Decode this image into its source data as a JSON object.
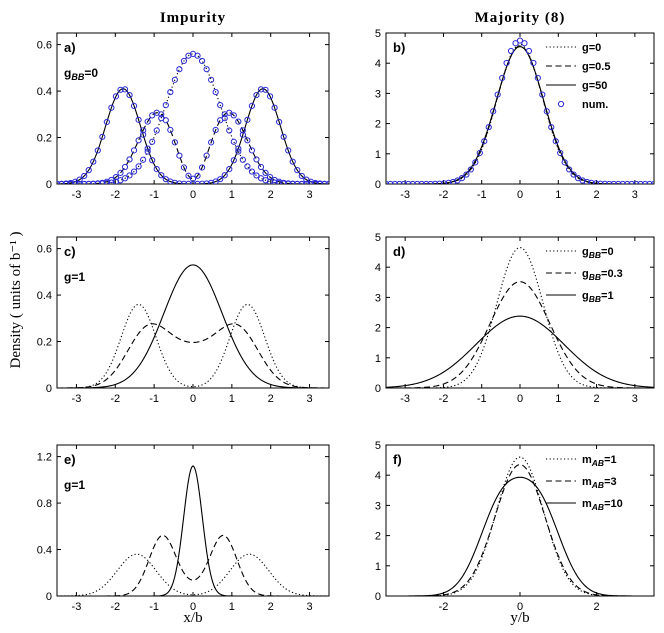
{
  "figure": {
    "col_titles": [
      "Impurity",
      "Majority (8)"
    ],
    "ylabel": "Density ( units of b⁻¹ )",
    "xlabel_left": "x/b",
    "xlabel_right": "y/b"
  },
  "chart_data": [
    {
      "panel": "a)",
      "type": "line",
      "annotation": "g_BB=0",
      "xlim": [
        -3.5,
        3.5
      ],
      "ylim": [
        0,
        0.65
      ],
      "xticks": [
        -3,
        -2,
        -1,
        0,
        1,
        2,
        3
      ],
      "yticks": [
        0,
        0.2,
        0.4,
        0.6
      ],
      "legend": "none",
      "series": [
        {
          "style": "dotted",
          "curves": [
            {
              "w": [
                1.0
              ],
              "mu": [
                0
              ],
              "sigma": [
                0.7
              ],
              "amp": [
                0.56
              ]
            }
          ]
        },
        {
          "style": "dashed",
          "curves": [
            {
              "w": [
                1,
                1,
                1
              ],
              "mu": [
                -0.9,
                0.9,
                0
              ],
              "sigma": [
                0.5,
                0.5,
                0.35
              ],
              "amp": [
                0.31,
                0.31,
                -0.1
              ]
            }
          ]
        },
        {
          "style": "solid",
          "curves": [
            {
              "w": [
                1,
                1
              ],
              "mu": [
                -1.8,
                1.8
              ],
              "sigma": [
                0.45,
                0.45
              ],
              "amp": [
                0.41,
                0.41
              ]
            }
          ]
        },
        {
          "style": "circles",
          "color": "#2a2ad6",
          "curves": [
            {
              "w": [
                1.0
              ],
              "mu": [
                0
              ],
              "sigma": [
                0.7
              ],
              "amp": [
                0.56
              ]
            },
            {
              "w": [
                1,
                1,
                1
              ],
              "mu": [
                -0.9,
                0.9,
                0
              ],
              "sigma": [
                0.5,
                0.5,
                0.35
              ],
              "amp": [
                0.31,
                0.31,
                -0.1
              ]
            },
            {
              "w": [
                1,
                1
              ],
              "mu": [
                -1.8,
                1.8
              ],
              "sigma": [
                0.45,
                0.45
              ],
              "amp": [
                0.41,
                0.41
              ]
            }
          ]
        }
      ]
    },
    {
      "panel": "b)",
      "type": "line",
      "xlim": [
        -3.5,
        3.5
      ],
      "ylim": [
        0,
        5
      ],
      "xticks": [
        -3,
        -2,
        -1,
        0,
        1,
        2,
        3
      ],
      "yticks": [
        0,
        1,
        2,
        3,
        4,
        5
      ],
      "legend": "top-right",
      "series": [
        {
          "name": "g=0",
          "style": "dotted",
          "curves": [
            {
              "w": [
                1
              ],
              "mu": [
                0
              ],
              "sigma": [
                0.6
              ],
              "amp": [
                4.62
              ]
            }
          ]
        },
        {
          "name": "g=0.5",
          "style": "dashed",
          "curves": [
            {
              "w": [
                1
              ],
              "mu": [
                0
              ],
              "sigma": [
                0.61
              ],
              "amp": [
                4.57
              ]
            }
          ]
        },
        {
          "name": "g=50",
          "style": "solid",
          "curves": [
            {
              "w": [
                1
              ],
              "mu": [
                0
              ],
              "sigma": [
                0.62
              ],
              "amp": [
                4.55
              ]
            }
          ]
        },
        {
          "name": "num.",
          "style": "circles",
          "color": "#2a2ad6",
          "curves": [
            {
              "w": [
                1
              ],
              "mu": [
                0
              ],
              "sigma": [
                0.6
              ],
              "amp": [
                4.75
              ]
            }
          ]
        }
      ]
    },
    {
      "panel": "c)",
      "type": "line",
      "annotation": "g=1",
      "xlim": [
        -3.5,
        3.5
      ],
      "ylim": [
        0,
        0.65
      ],
      "xticks": [
        -3,
        -2,
        -1,
        0,
        1,
        2,
        3
      ],
      "yticks": [
        0,
        0.2,
        0.4,
        0.6
      ],
      "legend": "none",
      "series": [
        {
          "style": "dotted",
          "curves": [
            {
              "w": [
                1,
                1
              ],
              "mu": [
                -1.4,
                1.4
              ],
              "sigma": [
                0.45,
                0.45
              ],
              "amp": [
                0.36,
                0.36
              ]
            }
          ]
        },
        {
          "style": "dashed",
          "curves": [
            {
              "w": [
                1,
                1,
                1
              ],
              "mu": [
                -1.15,
                1.15,
                0
              ],
              "sigma": [
                0.55,
                0.55,
                0.6
              ],
              "amp": [
                0.25,
                0.25,
                0.14
              ]
            }
          ]
        },
        {
          "style": "solid",
          "curves": [
            {
              "w": [
                1
              ],
              "mu": [
                0
              ],
              "sigma": [
                0.75
              ],
              "amp": [
                0.53
              ]
            }
          ]
        }
      ]
    },
    {
      "panel": "d)",
      "type": "line",
      "xlim": [
        -3.5,
        3.5
      ],
      "ylim": [
        0,
        5
      ],
      "xticks": [
        -3,
        -2,
        -1,
        0,
        1,
        2,
        3
      ],
      "yticks": [
        0,
        1,
        2,
        3,
        4,
        5
      ],
      "legend": "top-right",
      "series": [
        {
          "name": "g_BB=0",
          "style": "dotted",
          "curves": [
            {
              "w": [
                1
              ],
              "mu": [
                0
              ],
              "sigma": [
                0.6
              ],
              "amp": [
                4.65
              ]
            }
          ]
        },
        {
          "name": "g_BB=0.3",
          "style": "dashed",
          "curves": [
            {
              "w": [
                1
              ],
              "mu": [
                0
              ],
              "sigma": [
                0.78
              ],
              "amp": [
                3.52
              ]
            }
          ]
        },
        {
          "name": "g_BB=1",
          "style": "solid",
          "curves": [
            {
              "w": [
                1
              ],
              "mu": [
                0
              ],
              "sigma": [
                1.15
              ],
              "amp": [
                2.38
              ]
            }
          ]
        }
      ]
    },
    {
      "panel": "e)",
      "type": "line",
      "annotation": "g=1",
      "xlim": [
        -3.5,
        3.5
      ],
      "ylim": [
        0,
        1.3
      ],
      "xticks": [
        -3,
        -2,
        -1,
        0,
        1,
        2,
        3
      ],
      "yticks": [
        0,
        0.4,
        0.8,
        1.2
      ],
      "legend": "none",
      "series": [
        {
          "style": "dotted",
          "curves": [
            {
              "w": [
                1,
                1
              ],
              "mu": [
                -1.45,
                1.45
              ],
              "sigma": [
                0.5,
                0.5
              ],
              "amp": [
                0.36,
                0.36
              ]
            }
          ]
        },
        {
          "style": "dashed",
          "curves": [
            {
              "w": [
                1,
                1,
                1
              ],
              "mu": [
                -0.78,
                0.78,
                0
              ],
              "sigma": [
                0.35,
                0.35,
                0.3
              ],
              "amp": [
                0.52,
                0.52,
                0.05
              ]
            }
          ]
        },
        {
          "style": "solid",
          "curves": [
            {
              "w": [
                1
              ],
              "mu": [
                0
              ],
              "sigma": [
                0.24
              ],
              "amp": [
                1.12
              ]
            }
          ]
        }
      ]
    },
    {
      "panel": "f)",
      "type": "line",
      "xlim": [
        -3.5,
        3.5
      ],
      "ylim": [
        0,
        5
      ],
      "xticks": [
        -2,
        0,
        2
      ],
      "yticks": [
        0,
        1,
        2,
        3,
        4,
        5
      ],
      "legend": "top-right",
      "series": [
        {
          "name": "m_AB=1",
          "style": "dotted",
          "curves": [
            {
              "w": [
                1
              ],
              "mu": [
                0
              ],
              "sigma": [
                0.62
              ],
              "amp": [
                4.6
              ]
            }
          ]
        },
        {
          "name": "m_AB=3",
          "style": "dashed",
          "curves": [
            {
              "w": [
                1
              ],
              "mu": [
                0
              ],
              "sigma": [
                0.65
              ],
              "amp": [
                4.35
              ]
            }
          ]
        },
        {
          "name": "m_AB=10",
          "style": "solid",
          "curves": [
            {
              "w": [
                1,
                1
              ],
              "mu": [
                -0.5,
                0.5
              ],
              "sigma": [
                0.58,
                0.58
              ],
              "amp": [
                2.85,
                2.85
              ]
            }
          ]
        }
      ]
    }
  ]
}
